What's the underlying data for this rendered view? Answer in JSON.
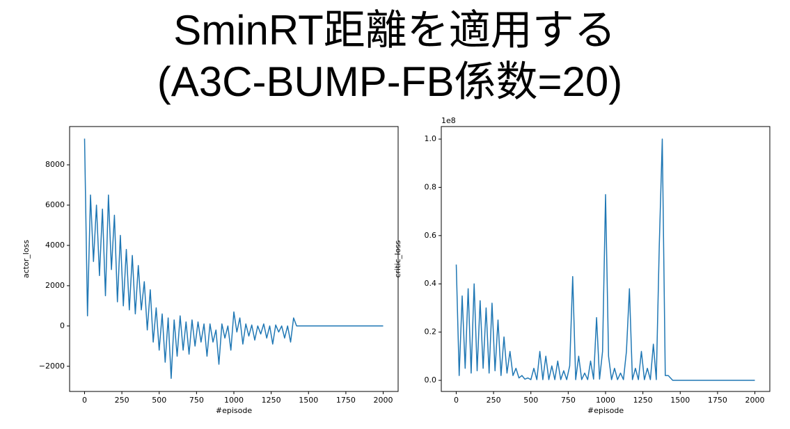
{
  "title": [
    "SminRT距離を適用する",
    "(A3C-BUMP-FB係数=20)"
  ],
  "chart_data": [
    {
      "type": "line",
      "xlabel": "#episode",
      "ylabel": "actor_loss",
      "xlim": [
        -100,
        2100
      ],
      "ylim": [
        -3250,
        9900
      ],
      "xticks": [
        0,
        250,
        500,
        750,
        1000,
        1250,
        1500,
        1750,
        2000
      ],
      "yticks": [
        {
          "value": -2000,
          "label": "−2000"
        },
        0,
        2000,
        4000,
        6000,
        8000
      ],
      "x": [
        0,
        20,
        40,
        60,
        80,
        100,
        120,
        140,
        160,
        180,
        200,
        220,
        240,
        260,
        280,
        300,
        320,
        340,
        360,
        380,
        400,
        420,
        440,
        460,
        480,
        500,
        520,
        540,
        560,
        580,
        600,
        620,
        640,
        660,
        680,
        700,
        720,
        740,
        760,
        780,
        800,
        820,
        840,
        860,
        880,
        900,
        920,
        940,
        960,
        980,
        1000,
        1020,
        1040,
        1060,
        1080,
        1100,
        1120,
        1140,
        1160,
        1180,
        1200,
        1220,
        1240,
        1260,
        1280,
        1300,
        1320,
        1340,
        1360,
        1380,
        1400,
        1420,
        1450,
        2000
      ],
      "series": [
        {
          "color": "#1f77b4",
          "values": [
            9300,
            500,
            6500,
            3200,
            6000,
            2500,
            5800,
            1500,
            6500,
            2800,
            5500,
            1200,
            4500,
            1000,
            3800,
            800,
            3500,
            600,
            3000,
            800,
            2200,
            -200,
            1800,
            -800,
            900,
            -1200,
            600,
            -1800,
            400,
            -2600,
            300,
            -1500,
            500,
            -1200,
            200,
            -1400,
            300,
            -1000,
            200,
            -800,
            100,
            -1500,
            100,
            -800,
            -200,
            -1900,
            100,
            -600,
            0,
            -1200,
            700,
            -300,
            400,
            -900,
            100,
            -500,
            50,
            -700,
            0,
            -400,
            100,
            -600,
            0,
            -900,
            50,
            -300,
            0,
            -600,
            0,
            -800,
            400,
            0,
            0,
            0
          ]
        }
      ]
    },
    {
      "type": "line",
      "xlabel": "#episode",
      "ylabel": "critic_loss",
      "y_offset_label": "1e8",
      "xlim": [
        -100,
        2100
      ],
      "ylim": [
        -0.046,
        1.052
      ],
      "xticks": [
        0,
        250,
        500,
        750,
        1000,
        1250,
        1500,
        1750,
        2000
      ],
      "yticks": [
        {
          "value": 0,
          "label": "0.0"
        },
        0.2,
        0.4,
        0.6,
        0.8,
        {
          "value": 1,
          "label": "1.0"
        }
      ],
      "x": [
        0,
        20,
        40,
        60,
        80,
        100,
        120,
        140,
        160,
        180,
        200,
        220,
        240,
        260,
        280,
        300,
        320,
        340,
        360,
        380,
        400,
        420,
        440,
        460,
        480,
        500,
        520,
        540,
        560,
        580,
        600,
        620,
        640,
        660,
        680,
        700,
        720,
        740,
        760,
        780,
        800,
        820,
        840,
        860,
        880,
        900,
        920,
        940,
        960,
        980,
        1000,
        1020,
        1040,
        1060,
        1080,
        1100,
        1120,
        1140,
        1160,
        1180,
        1200,
        1220,
        1240,
        1260,
        1280,
        1300,
        1320,
        1340,
        1360,
        1380,
        1400,
        1420,
        1450,
        2000
      ],
      "series": [
        {
          "color": "#1f77b4",
          "values": [
            0.48,
            0.02,
            0.35,
            0.05,
            0.38,
            0.03,
            0.4,
            0.04,
            0.33,
            0.05,
            0.3,
            0.03,
            0.32,
            0.04,
            0.25,
            0.02,
            0.18,
            0.03,
            0.12,
            0.02,
            0.05,
            0.01,
            0.02,
            0.005,
            0.01,
            0.003,
            0.05,
            0.003,
            0.12,
            0.003,
            0.1,
            0.003,
            0.06,
            0.003,
            0.08,
            0.003,
            0.04,
            0.003,
            0.06,
            0.43,
            0.003,
            0.1,
            0.003,
            0.03,
            0.003,
            0.08,
            0.005,
            0.26,
            0.005,
            0.12,
            0.77,
            0.1,
            0.003,
            0.05,
            0.003,
            0.03,
            0.003,
            0.12,
            0.38,
            0.003,
            0.05,
            0.003,
            0.12,
            0.003,
            0.05,
            0.003,
            0.15,
            0.003,
            0.56,
            1.0,
            0.02,
            0.02,
            0,
            0
          ]
        }
      ]
    }
  ]
}
